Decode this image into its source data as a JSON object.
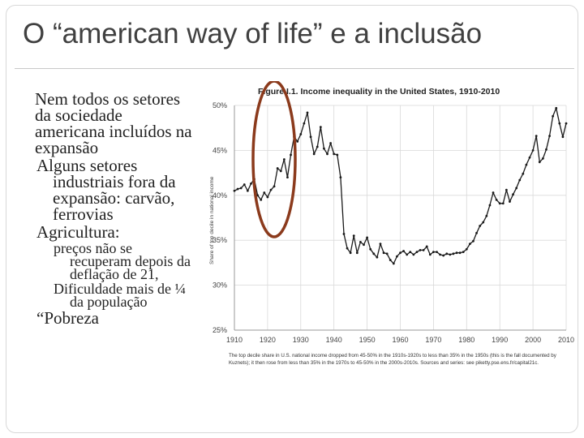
{
  "slide": {
    "title": "O “american way of life” e a inclusão",
    "bullet_glyph": "",
    "bullets": [
      {
        "level": 1,
        "text": "Nem todos os setores da sociedade americana incluídos na expansão"
      },
      {
        "level": 2,
        "text": "Alguns setores industriais fora da expansão: carvão, ferrovias"
      },
      {
        "level": 2,
        "text": "Agricultura:"
      },
      {
        "level": 3,
        "text": "preços não se recuperam depois da deflação de 21,"
      },
      {
        "level": 3,
        "text": "Dificuldade mais de ¼ da população"
      },
      {
        "level": 2,
        "text": "“Pobreza"
      }
    ]
  },
  "highlight": {
    "shape": "ellipse",
    "color": "#8b3a1c",
    "circled_period": "1920–1930"
  },
  "chart_data": {
    "type": "line",
    "title": "Figure I.1. Income inequality in the United States, 1910-2010",
    "xlabel": "",
    "ylabel": "Share of top decile in national income",
    "xlim": [
      1910,
      2010
    ],
    "ylim": [
      25,
      50
    ],
    "x_ticks": [
      1910,
      1920,
      1930,
      1940,
      1950,
      1960,
      1970,
      1980,
      1990,
      2000,
      2010
    ],
    "y_ticks": [
      "25%",
      "30%",
      "35%",
      "40%",
      "45%",
      "50%"
    ],
    "y_tick_values": [
      25,
      30,
      35,
      40,
      45,
      50
    ],
    "grid": true,
    "line_color": "#1a1a1a",
    "caption": [
      "The top decile share in U.S. national income dropped from 45-50% in the 1910s-1920s to less than 35% in the 1950s (this is the fall documented by",
      "Kuznets); it then rose from less than 35% in the 1970s to 45-50% in the 2000s-2010s. Sources and series: see piketty.pse.ens.fr/capital21c."
    ],
    "series": [
      {
        "x": [
          1910,
          1911,
          1912,
          1913,
          1914,
          1915,
          1916,
          1917,
          1918,
          1919,
          1920,
          1921,
          1922,
          1923,
          1924,
          1925,
          1926,
          1927,
          1928,
          1929,
          1930,
          1931,
          1932,
          1933,
          1934,
          1935,
          1936,
          1937,
          1938,
          1939,
          1940,
          1941,
          1942,
          1943,
          1944,
          1945,
          1946,
          1947,
          1948,
          1949,
          1950,
          1951,
          1952,
          1953,
          1954,
          1955,
          1956,
          1957,
          1958,
          1959,
          1960,
          1961,
          1962,
          1963,
          1964,
          1965,
          1966,
          1967,
          1968,
          1969,
          1970,
          1971,
          1972,
          1973,
          1974,
          1975,
          1976,
          1977,
          1978,
          1979,
          1980,
          1981,
          1982,
          1983,
          1984,
          1985,
          1986,
          1987,
          1988,
          1989,
          1990,
          1991,
          1992,
          1993,
          1994,
          1995,
          1996,
          1997,
          1998,
          1999,
          2000,
          2001,
          2002,
          2003,
          2004,
          2005,
          2006,
          2007,
          2008,
          2009,
          2010
        ],
        "values": [
          40.5,
          40.7,
          40.8,
          41.2,
          40.5,
          41.3,
          41.8,
          40.0,
          39.5,
          40.3,
          39.8,
          40.6,
          41.0,
          43.0,
          42.7,
          44.0,
          42.0,
          44.5,
          46.5,
          46.0,
          46.8,
          48.0,
          49.2,
          46.5,
          44.6,
          45.4,
          47.6,
          45.2,
          44.6,
          45.8,
          44.6,
          44.5,
          42.0,
          35.7,
          34.1,
          33.6,
          35.5,
          33.6,
          34.8,
          34.5,
          35.3,
          34.0,
          33.5,
          33.1,
          34.6,
          33.6,
          33.5,
          32.8,
          32.4,
          33.2,
          33.6,
          33.8,
          33.4,
          33.7,
          33.4,
          33.7,
          33.9,
          33.9,
          34.3,
          33.4,
          33.7,
          33.7,
          33.4,
          33.3,
          33.5,
          33.4,
          33.5,
          33.6,
          33.6,
          33.7,
          34.0,
          34.6,
          34.9,
          35.8,
          36.6,
          37.0,
          37.7,
          38.9,
          40.3,
          39.5,
          39.1,
          39.1,
          40.6,
          39.3,
          40.1,
          40.8,
          41.7,
          42.4,
          43.4,
          44.2,
          45.0,
          46.6,
          43.7,
          44.1,
          45.1,
          46.6,
          48.8,
          49.7,
          48.0,
          46.5,
          48.0
        ]
      }
    ]
  }
}
